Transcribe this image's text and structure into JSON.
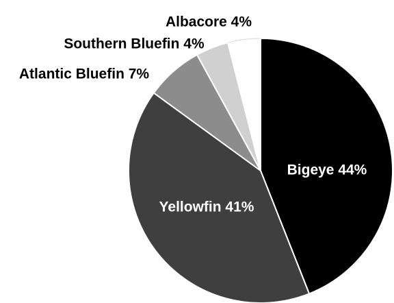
{
  "chart_data": {
    "type": "pie",
    "title": "",
    "start": "12 o'clock, clockwise",
    "slices": [
      {
        "label": "Bigeye 44%",
        "name": "Bigeye",
        "value": 44,
        "color": "#000000",
        "label_color": "#ffffff",
        "label_placement": "inside"
      },
      {
        "label": "Yellowfin 41%",
        "name": "Yellowfin",
        "value": 41,
        "color": "#3f3f3f",
        "label_color": "#ffffff",
        "label_placement": "inside"
      },
      {
        "label": "Atlantic Bluefin 7%",
        "name": "Atlantic Bluefin",
        "value": 7,
        "color": "#8c8c8c",
        "label_color": "#000000",
        "label_placement": "outside"
      },
      {
        "label": "Southern Bluefin 4%",
        "name": "Southern Bluefin",
        "value": 4,
        "color": "#d0d0d0",
        "label_color": "#000000",
        "label_placement": "outside"
      },
      {
        "label": "Albacore 4%",
        "name": "Albacore",
        "value": 4,
        "color": "#ffffff",
        "label_color": "#000000",
        "label_placement": "outside"
      }
    ],
    "slice_border_color": "#ffffff",
    "outline_color": "#000000"
  }
}
